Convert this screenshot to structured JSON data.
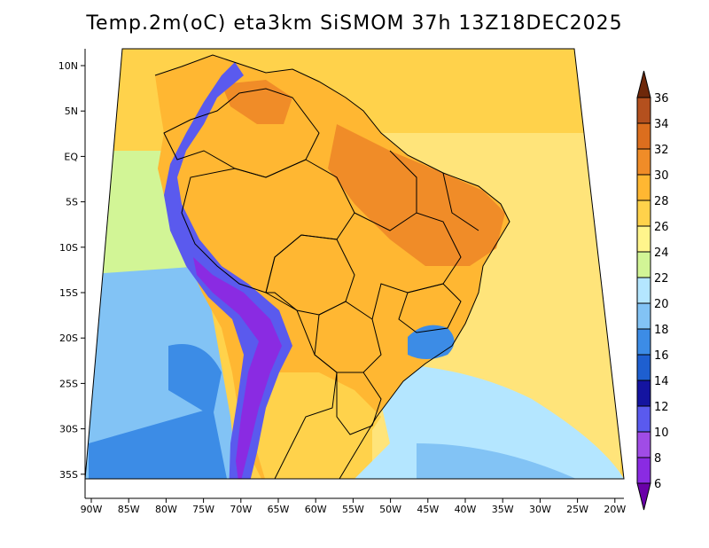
{
  "title": "Temp.2m(oC) eta3km SiSMOM 37h 13Z18DEC2025",
  "map": {
    "lat_labels": [
      "10N",
      "5N",
      "EQ",
      "5S",
      "10S",
      "15S",
      "20S",
      "25S",
      "30S",
      "35S"
    ],
    "lon_labels": [
      "90W",
      "85W",
      "80W",
      "75W",
      "70W",
      "65W",
      "60W",
      "55W",
      "50W",
      "45W",
      "40W",
      "35W",
      "30W",
      "25W",
      "20W"
    ]
  },
  "colorbar": {
    "levels": [
      "6",
      "8",
      "10",
      "12",
      "14",
      "16",
      "18",
      "20",
      "22",
      "24",
      "26",
      "28",
      "30",
      "32",
      "34",
      "36"
    ],
    "colors": [
      "#6a00a8",
      "#8a2be2",
      "#a04ce6",
      "#5a5aee",
      "#1414a0",
      "#1e5fd0",
      "#3c8ce6",
      "#82c3f5",
      "#b4e6ff",
      "#d2f596",
      "#fff58c",
      "#ffd24b",
      "#ffb732",
      "#f08c28",
      "#dc6e1e",
      "#b4501e",
      "#6e280a"
    ]
  },
  "fills": {
    "ocean_north": "#ffd24b",
    "ocean_mid": "#ffe47a",
    "ocean_pacific_warm": "#d2f596",
    "ocean_pacific": "#82c3f5",
    "ocean_pacific_cool": "#3c8ce6",
    "ocean_atlantic_south": "#b4e6ff",
    "ocean_atlantic_cool": "#82c3f5",
    "land": "#ffb732",
    "land_hot": "#f08c28",
    "land_south": "#ffd24b",
    "andes_cold": "#5a5aee",
    "andes_core": "#8a2be2",
    "highland": "#3c8ce6"
  }
}
